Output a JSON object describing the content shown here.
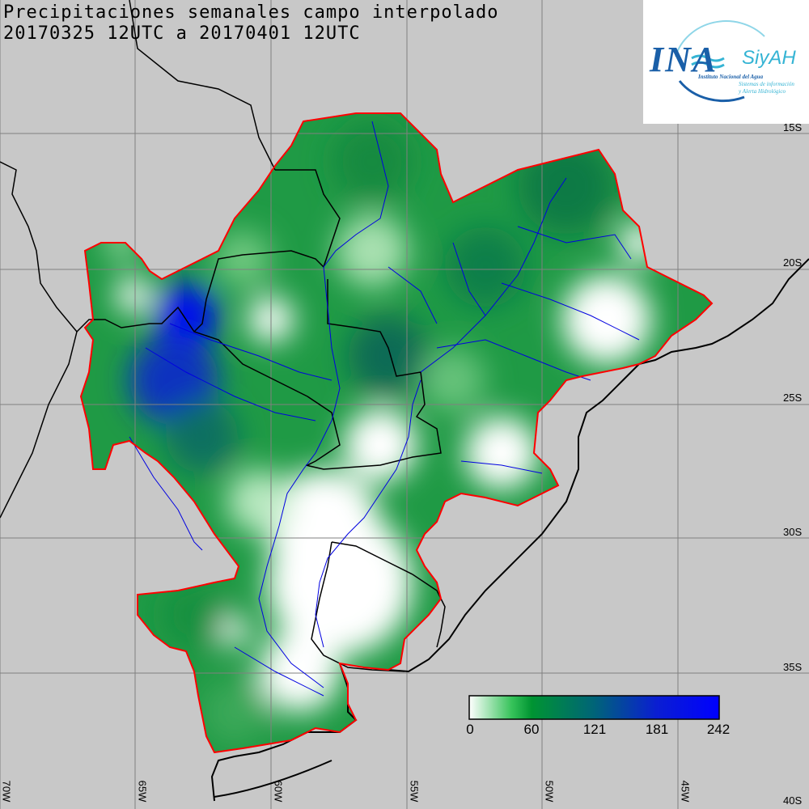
{
  "title": {
    "line1": "Precipitaciones semanales campo interpolado",
    "line2": "20170325 12UTC a 20170401 12UTC"
  },
  "logo": {
    "ina": "INA",
    "siyah": "SiyAH",
    "ina_full": "Instituto Nacional del Agua",
    "siyah_full_1": "Sistemas de información",
    "siyah_full_2": "y Alerta Hidrológico"
  },
  "colorbar": {
    "labels": [
      "0",
      "60",
      "121",
      "181",
      "242"
    ],
    "colors": [
      "#ffffff",
      "#36c35a",
      "#009432",
      "#006478",
      "#0a1ed2",
      "#0000ff"
    ]
  },
  "axes": {
    "lon_labels": [
      "70W",
      "65W",
      "60W",
      "55W",
      "50W",
      "45W"
    ],
    "lat_labels": [
      "15S",
      "20S",
      "25S",
      "30S",
      "35S",
      "40S"
    ]
  }
}
